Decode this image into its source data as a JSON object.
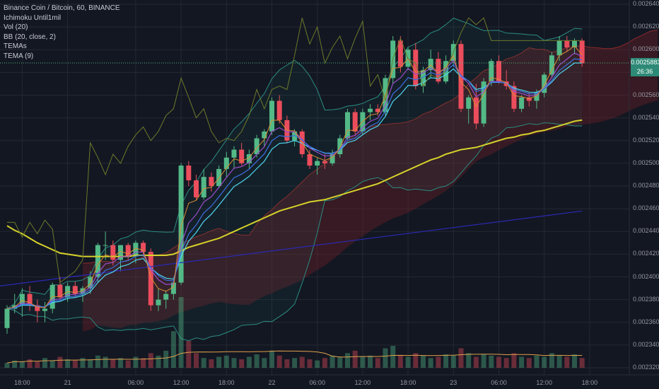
{
  "legend": {
    "symbol": "Binance Coin / Bitcoin, 60, BINANCE",
    "ichimoku": "Ichimoku Until1mil",
    "vol": "Vol (20)",
    "bb": "BB (20, close, 2)",
    "temas": "TEMAs",
    "tema": "TEMA (9)"
  },
  "price_tag": {
    "price": "0.0025883",
    "countdown": "26:36"
  },
  "colors": {
    "background": "#131722",
    "grid": "#242833",
    "up": "#53b987",
    "down": "#eb4d5c",
    "ema_long": "#d6d22b",
    "trend_line": "#2a2ab5",
    "cloud_red": "#7a1f24",
    "cloud_green": "#1e4f2b",
    "bb": "#2a8c82",
    "lagging": "#6b7a2a",
    "tema_cyan": "#4dd6f0",
    "tema_purple": "#9b4dca",
    "tema_blue": "#3d6ee0",
    "tema_orange": "#d98a36",
    "volume_ma": "#e0a04a"
  },
  "chart_data": {
    "type": "candlestick",
    "ylim": [
      0.00232,
      0.00264
    ],
    "y_ticks": [
      "0.0026400",
      "0.0026200",
      "0.0026000",
      "0.0025800",
      "0.0025600",
      "0.0025400",
      "0.0025200",
      "0.0025000",
      "0.0024800",
      "0.0024600",
      "0.0024400",
      "0.0024200",
      "0.0024000",
      "0.0023800",
      "0.0023600",
      "0.0023400",
      "0.0023200"
    ],
    "x_ticks": [
      {
        "label": "18:00",
        "i": 2
      },
      {
        "label": "21",
        "i": 8
      },
      {
        "label": "06:00",
        "i": 17
      },
      {
        "label": "12:00",
        "i": 23
      },
      {
        "label": "18:00",
        "i": 29
      },
      {
        "label": "22",
        "i": 35
      },
      {
        "label": "06:00",
        "i": 41
      },
      {
        "label": "12:00",
        "i": 47
      },
      {
        "label": "18:00",
        "i": 53
      },
      {
        "label": "23",
        "i": 59
      },
      {
        "label": "06:00",
        "i": 65
      },
      {
        "label": "12:00",
        "i": 71
      },
      {
        "label": "18:00",
        "i": 77
      }
    ],
    "candles": [
      [
        0.002355,
        0.002375,
        0.00235,
        0.002372
      ],
      [
        0.002372,
        0.002385,
        0.002368,
        0.002375
      ],
      [
        0.002375,
        0.00239,
        0.002365,
        0.002385
      ],
      [
        0.002385,
        0.002392,
        0.00237,
        0.002375
      ],
      [
        0.002375,
        0.00238,
        0.00236,
        0.00237
      ],
      [
        0.00237,
        0.002378,
        0.00236,
        0.002372
      ],
      [
        0.002372,
        0.002395,
        0.002368,
        0.002393
      ],
      [
        0.002393,
        0.0024,
        0.00238,
        0.002382
      ],
      [
        0.002382,
        0.002395,
        0.002378,
        0.002392
      ],
      [
        0.002392,
        0.002396,
        0.002382,
        0.002385
      ],
      [
        0.002385,
        0.002392,
        0.002378,
        0.00239
      ],
      [
        0.00239,
        0.002405,
        0.002385,
        0.0024
      ],
      [
        0.0024,
        0.00243,
        0.002395,
        0.002428
      ],
      [
        0.002428,
        0.00244,
        0.002415,
        0.002428
      ],
      [
        0.002428,
        0.002432,
        0.00241,
        0.002415
      ],
      [
        0.002415,
        0.002428,
        0.002405,
        0.002428
      ],
      [
        0.002428,
        0.00243,
        0.002415,
        0.002418
      ],
      [
        0.002418,
        0.002432,
        0.002412,
        0.00243
      ],
      [
        0.00243,
        0.002432,
        0.002418,
        0.002422
      ],
      [
        0.002422,
        0.002425,
        0.00237,
        0.002375
      ],
      [
        0.002375,
        0.00239,
        0.00237,
        0.00238
      ],
      [
        0.00238,
        0.002388,
        0.002372,
        0.002385
      ],
      [
        0.002385,
        0.002398,
        0.00238,
        0.002395
      ],
      [
        0.002395,
        0.0025,
        0.002393,
        0.002498
      ],
      [
        0.002498,
        0.002502,
        0.00248,
        0.002485
      ],
      [
        0.002485,
        0.00249,
        0.002468,
        0.00247
      ],
      [
        0.00247,
        0.002495,
        0.002468,
        0.002488
      ],
      [
        0.002488,
        0.002492,
        0.002475,
        0.00248
      ],
      [
        0.00248,
        0.002498,
        0.002478,
        0.002495
      ],
      [
        0.002495,
        0.00251,
        0.002488,
        0.002505
      ],
      [
        0.002505,
        0.002515,
        0.002495,
        0.002512
      ],
      [
        0.002512,
        0.002518,
        0.002498,
        0.0025
      ],
      [
        0.0025,
        0.002512,
        0.002495,
        0.002508
      ],
      [
        0.002508,
        0.002525,
        0.002505,
        0.002522
      ],
      [
        0.002522,
        0.00253,
        0.002515,
        0.002528
      ],
      [
        0.002528,
        0.002558,
        0.002525,
        0.002555
      ],
      [
        0.002555,
        0.00256,
        0.002535,
        0.002538
      ],
      [
        0.002538,
        0.002542,
        0.002518,
        0.00252
      ],
      [
        0.00252,
        0.00253,
        0.002515,
        0.002528
      ],
      [
        0.002528,
        0.00253,
        0.002505,
        0.002508
      ],
      [
        0.002508,
        0.002512,
        0.002495,
        0.002498
      ],
      [
        0.002498,
        0.002505,
        0.00249,
        0.002502
      ],
      [
        0.002502,
        0.002508,
        0.002495,
        0.0025
      ],
      [
        0.0025,
        0.002512,
        0.002498,
        0.002508
      ],
      [
        0.002508,
        0.002525,
        0.002505,
        0.002522
      ],
      [
        0.002522,
        0.002548,
        0.00252,
        0.002545
      ],
      [
        0.002545,
        0.002548,
        0.002525,
        0.002528
      ],
      [
        0.002528,
        0.002548,
        0.002525,
        0.002545
      ],
      [
        0.002545,
        0.002552,
        0.002538,
        0.002548
      ],
      [
        0.002548,
        0.002552,
        0.002542,
        0.002545
      ],
      [
        0.002545,
        0.002578,
        0.002542,
        0.002575
      ],
      [
        0.002575,
        0.002612,
        0.00257,
        0.002608
      ],
      [
        0.002608,
        0.002612,
        0.00258,
        0.002585
      ],
      [
        0.002585,
        0.002602,
        0.002582,
        0.0026
      ],
      [
        0.0026,
        0.002606,
        0.002565,
        0.002568
      ],
      [
        0.002568,
        0.002585,
        0.002562,
        0.002582
      ],
      [
        0.002582,
        0.0026,
        0.002575,
        0.002592
      ],
      [
        0.002592,
        0.002598,
        0.00257,
        0.002572
      ],
      [
        0.002572,
        0.002595,
        0.00257,
        0.00259
      ],
      [
        0.00259,
        0.002608,
        0.002585,
        0.002605
      ],
      [
        0.002605,
        0.002608,
        0.002545,
        0.002548
      ],
      [
        0.002548,
        0.00256,
        0.002535,
        0.002558
      ],
      [
        0.002558,
        0.00257,
        0.00253,
        0.002535
      ],
      [
        0.002535,
        0.002575,
        0.002532,
        0.002572
      ],
      [
        0.002572,
        0.002592,
        0.002568,
        0.00259
      ],
      [
        0.00259,
        0.002595,
        0.00257,
        0.002572
      ],
      [
        0.002572,
        0.002582,
        0.002565,
        0.002568
      ],
      [
        0.002568,
        0.002572,
        0.002545,
        0.002548
      ],
      [
        0.002548,
        0.00256,
        0.002545,
        0.002558
      ],
      [
        0.002558,
        0.002562,
        0.00255,
        0.002555
      ],
      [
        0.002555,
        0.002565,
        0.002548,
        0.002562
      ],
      [
        0.002562,
        0.00258,
        0.002558,
        0.002578
      ],
      [
        0.002578,
        0.002598,
        0.002575,
        0.002595
      ],
      [
        0.002595,
        0.002612,
        0.00259,
        0.002608
      ],
      [
        0.002608,
        0.002612,
        0.002598,
        0.002602
      ],
      [
        0.002602,
        0.00261,
        0.002596,
        0.002608
      ],
      [
        0.002608,
        0.00261,
        0.002585,
        0.002588
      ]
    ],
    "volumes": [
      4,
      6,
      5,
      7,
      5,
      8,
      6,
      9,
      7,
      6,
      8,
      7,
      10,
      9,
      7,
      8,
      6,
      9,
      8,
      12,
      10,
      14,
      30,
      58,
      22,
      12,
      8,
      7,
      9,
      10,
      8,
      7,
      9,
      11,
      8,
      14,
      10,
      7,
      8,
      9,
      7,
      6,
      8,
      10,
      9,
      12,
      14,
      9,
      10,
      8,
      16,
      18,
      10,
      9,
      12,
      10,
      8,
      9,
      11,
      10,
      16,
      12,
      9,
      11,
      10,
      9,
      8,
      12,
      9,
      8,
      10,
      9,
      12,
      10,
      9,
      11,
      8
    ],
    "ema_long": [
      0.002445,
      0.002441,
      0.002438,
      0.002434,
      0.00243,
      0.002427,
      0.002424,
      0.002421,
      0.00242,
      0.002419,
      0.002418,
      0.002418,
      0.002418,
      0.002418,
      0.002418,
      0.002418,
      0.002418,
      0.002419,
      0.002419,
      0.002419,
      0.002419,
      0.002419,
      0.00242,
      0.002423,
      0.002426,
      0.002428,
      0.00243,
      0.002432,
      0.002434,
      0.002437,
      0.00244,
      0.002443,
      0.002446,
      0.002449,
      0.002452,
      0.002455,
      0.002458,
      0.00246,
      0.002462,
      0.002464,
      0.002466,
      0.002467,
      0.002468,
      0.00247,
      0.002472,
      0.002474,
      0.002476,
      0.002478,
      0.00248,
      0.002482,
      0.002485,
      0.002488,
      0.002491,
      0.002494,
      0.002497,
      0.0025,
      0.002503,
      0.002505,
      0.002508,
      0.00251,
      0.002512,
      0.002513,
      0.002514,
      0.002516,
      0.002518,
      0.00252,
      0.002522,
      0.002523,
      0.002525,
      0.002526,
      0.002528,
      0.002529,
      0.002531,
      0.002533,
      0.002535,
      0.002537,
      0.002538
    ]
  }
}
